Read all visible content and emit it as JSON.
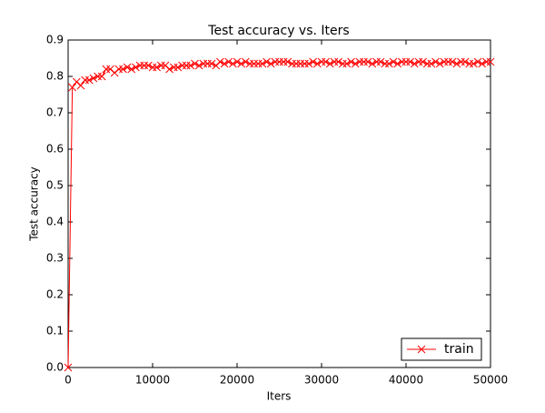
{
  "chart_data": {
    "type": "line",
    "title": "Test accuracy  vs. Iters",
    "x_label": "Iters",
    "y_label": "Test accuracy",
    "x": [
      0,
      500,
      1000,
      1500,
      2000,
      2500,
      3000,
      3500,
      4000,
      4500,
      5000,
      5500,
      6000,
      6500,
      7000,
      7500,
      8000,
      8500,
      9000,
      9500,
      10000,
      10500,
      11000,
      11500,
      12000,
      12500,
      13000,
      13500,
      14000,
      14500,
      15000,
      15500,
      16000,
      16500,
      17000,
      17500,
      18000,
      18500,
      19000,
      19500,
      20000,
      20500,
      21000,
      21500,
      22000,
      22500,
      23000,
      23500,
      24000,
      24500,
      25000,
      25500,
      26000,
      26500,
      27000,
      27500,
      28000,
      28500,
      29000,
      29500,
      30000,
      30500,
      31000,
      31500,
      32000,
      32500,
      33000,
      33500,
      34000,
      34500,
      35000,
      35500,
      36000,
      36500,
      37000,
      37500,
      38000,
      38500,
      39000,
      39500,
      40000,
      40500,
      41000,
      41500,
      42000,
      42500,
      43000,
      43500,
      44000,
      44500,
      45000,
      45500,
      46000,
      46500,
      47000,
      47500,
      48000,
      48500,
      49000,
      49500,
      50000
    ],
    "series": [
      {
        "name": "train",
        "color": "#ff0000",
        "values": [
          0.0,
          0.77,
          0.785,
          0.775,
          0.79,
          0.79,
          0.795,
          0.8,
          0.8,
          0.82,
          0.82,
          0.81,
          0.82,
          0.82,
          0.825,
          0.82,
          0.825,
          0.83,
          0.83,
          0.83,
          0.825,
          0.825,
          0.83,
          0.83,
          0.82,
          0.825,
          0.825,
          0.83,
          0.83,
          0.83,
          0.835,
          0.83,
          0.835,
          0.835,
          0.835,
          0.83,
          0.84,
          0.835,
          0.84,
          0.835,
          0.84,
          0.835,
          0.84,
          0.835,
          0.835,
          0.835,
          0.835,
          0.84,
          0.835,
          0.84,
          0.84,
          0.84,
          0.84,
          0.835,
          0.835,
          0.835,
          0.835,
          0.835,
          0.84,
          0.835,
          0.84,
          0.84,
          0.835,
          0.84,
          0.84,
          0.835,
          0.835,
          0.84,
          0.835,
          0.84,
          0.84,
          0.84,
          0.835,
          0.84,
          0.84,
          0.835,
          0.835,
          0.84,
          0.835,
          0.84,
          0.84,
          0.84,
          0.835,
          0.84,
          0.84,
          0.835,
          0.835,
          0.84,
          0.835,
          0.84,
          0.84,
          0.84,
          0.835,
          0.84,
          0.84,
          0.835,
          0.835,
          0.84,
          0.835,
          0.84,
          0.84
        ]
      }
    ],
    "xlim": [
      0,
      50000
    ],
    "xticks": [
      0,
      10000,
      20000,
      30000,
      40000,
      50000
    ],
    "ylim": [
      0,
      0.9
    ],
    "yticks": [
      {
        "value": 0,
        "label": "0.0"
      },
      0.1,
      0.2,
      0.3,
      0.4,
      0.5,
      0.6,
      0.7,
      0.8,
      0.9
    ],
    "legend": "lower right",
    "grid": false
  }
}
